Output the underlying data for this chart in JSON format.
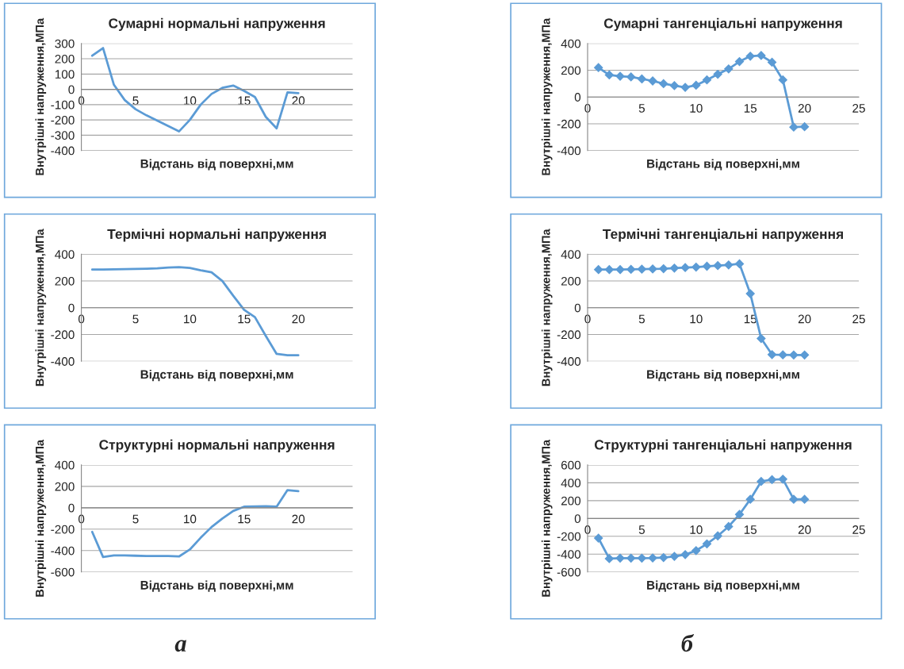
{
  "chart_data": [
    {
      "type": "line",
      "title": "Сумарні нормальні напруження",
      "xlabel": "Відстань від поверхні,мм",
      "ylabel": "Внутрішні напруження,МПа",
      "xlim": [
        0,
        25
      ],
      "xticks": [
        0,
        5,
        10,
        15,
        20
      ],
      "ylim": [
        -400,
        300
      ],
      "yticks": [
        -400,
        -300,
        -200,
        -100,
        0,
        100,
        200,
        300
      ],
      "grid": "y",
      "marker": "none",
      "x": [
        1,
        2,
        3,
        4,
        5,
        6,
        7,
        8,
        9,
        10,
        11,
        12,
        13,
        14,
        15,
        16,
        17,
        18,
        19,
        20
      ],
      "series": [
        {
          "color": "#5b9bd5",
          "values": [
            220,
            270,
            30,
            -70,
            -130,
            -170,
            -205,
            -240,
            -275,
            -200,
            -100,
            -30,
            10,
            25,
            -10,
            -50,
            -180,
            -255,
            -20,
            -25
          ]
        }
      ]
    },
    {
      "type": "line",
      "title": "Термічні нормальні напруження",
      "xlabel": "Відстань від поверхні,мм",
      "ylabel": "Внутрішні напруження,МПа",
      "xlim": [
        0,
        25
      ],
      "xticks": [
        0,
        5,
        10,
        15,
        20
      ],
      "ylim": [
        -400,
        400
      ],
      "yticks": [
        -400,
        -200,
        0,
        200,
        400
      ],
      "grid": "y",
      "marker": "none",
      "x": [
        1,
        2,
        3,
        4,
        5,
        6,
        7,
        8,
        9,
        10,
        11,
        12,
        13,
        14,
        15,
        16,
        17,
        18,
        19,
        20
      ],
      "series": [
        {
          "color": "#5b9bd5",
          "values": [
            285,
            285,
            287,
            288,
            290,
            292,
            295,
            300,
            303,
            298,
            280,
            265,
            200,
            90,
            -15,
            -70,
            -210,
            -345,
            -355,
            -355
          ]
        }
      ]
    },
    {
      "type": "line",
      "title": "Структурні нормальні напруження",
      "xlabel": "Відстань від поверхні,мм",
      "ylabel": "Внутрішні напруження,МПа",
      "xlim": [
        0,
        25
      ],
      "xticks": [
        0,
        5,
        10,
        15,
        20
      ],
      "ylim": [
        -600,
        400
      ],
      "yticks": [
        -600,
        -400,
        -200,
        0,
        200,
        400
      ],
      "grid": "y",
      "marker": "none",
      "x": [
        1,
        2,
        3,
        4,
        5,
        6,
        7,
        8,
        9,
        10,
        11,
        12,
        13,
        14,
        15,
        16,
        17,
        18,
        19,
        20
      ],
      "series": [
        {
          "color": "#5b9bd5",
          "values": [
            -225,
            -460,
            -445,
            -445,
            -448,
            -450,
            -450,
            -450,
            -455,
            -390,
            -280,
            -180,
            -100,
            -30,
            10,
            12,
            15,
            10,
            165,
            155
          ]
        }
      ],
      "annotations": [
        "а"
      ]
    },
    {
      "type": "line",
      "title": "Сумарні тангенціальні напруження",
      "xlabel": "Відстань від поверхні,мм",
      "ylabel": "Внутрішні напруження,МПа",
      "xlim": [
        0,
        25
      ],
      "xticks": [
        0,
        5,
        10,
        15,
        20,
        25
      ],
      "ylim": [
        -400,
        400
      ],
      "yticks": [
        -400,
        -200,
        0,
        200,
        400
      ],
      "grid": "y",
      "marker": "diamond",
      "x": [
        1,
        2,
        3,
        4,
        5,
        6,
        7,
        8,
        9,
        10,
        11,
        12,
        13,
        14,
        15,
        16,
        17,
        18,
        19,
        20
      ],
      "series": [
        {
          "color": "#5b9bd5",
          "values": [
            220,
            165,
            155,
            150,
            135,
            120,
            100,
            85,
            72,
            88,
            128,
            170,
            210,
            265,
            305,
            310,
            260,
            128,
            -225,
            -222
          ]
        }
      ]
    },
    {
      "type": "line",
      "title": "Термічні тангенціальні напруження",
      "xlabel": "Відстань від поверхні,мм",
      "ylabel": "Внутрішні напруження,МПа",
      "xlim": [
        0,
        25
      ],
      "xticks": [
        0,
        5,
        10,
        15,
        20,
        25
      ],
      "ylim": [
        -400,
        400
      ],
      "yticks": [
        -400,
        -200,
        0,
        200,
        400
      ],
      "grid": "y",
      "marker": "diamond",
      "x": [
        1,
        2,
        3,
        4,
        5,
        6,
        7,
        8,
        9,
        10,
        11,
        12,
        13,
        14,
        15,
        16,
        17,
        18,
        19,
        20
      ],
      "series": [
        {
          "color": "#5b9bd5",
          "values": [
            285,
            285,
            285,
            287,
            288,
            290,
            292,
            296,
            300,
            304,
            310,
            315,
            320,
            328,
            105,
            -230,
            -350,
            -352,
            -353,
            -353
          ]
        }
      ]
    },
    {
      "type": "line",
      "title": "Структурні тангенціальні напруження",
      "xlabel": "Відстань від поверхні,мм",
      "ylabel": "Внутрішні напруження,МПа",
      "xlim": [
        0,
        25
      ],
      "xticks": [
        0,
        5,
        10,
        15,
        20,
        25
      ],
      "ylim": [
        -600,
        600
      ],
      "yticks": [
        -600,
        -400,
        -200,
        0,
        200,
        400,
        600
      ],
      "grid": "y",
      "marker": "diamond",
      "x": [
        1,
        2,
        3,
        4,
        5,
        6,
        7,
        8,
        9,
        10,
        11,
        12,
        13,
        14,
        15,
        16,
        17,
        18,
        19,
        20
      ],
      "series": [
        {
          "color": "#5b9bd5",
          "values": [
            -220,
            -450,
            -445,
            -445,
            -445,
            -443,
            -438,
            -425,
            -405,
            -360,
            -285,
            -195,
            -90,
            45,
            215,
            415,
            435,
            440,
            215,
            215
          ]
        }
      ],
      "annotations": [
        "б"
      ]
    }
  ]
}
